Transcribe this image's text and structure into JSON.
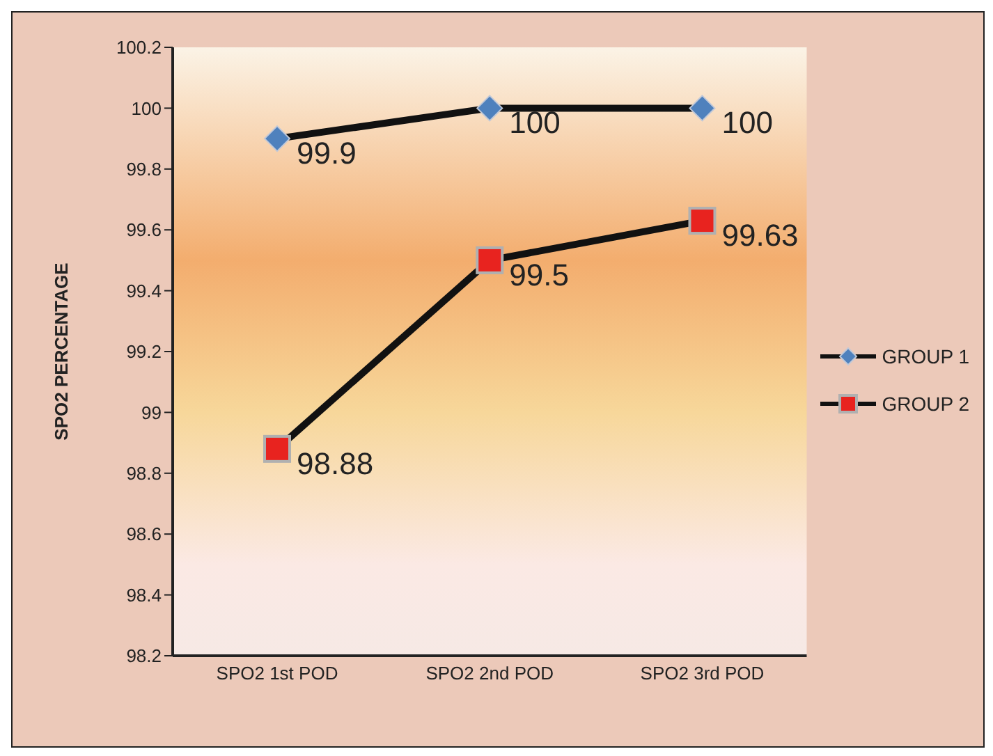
{
  "chart_data": {
    "type": "line",
    "ylabel": "SPO2 PERCENTAGE",
    "categories": [
      "SPO2 1st POD",
      "SPO2 2nd POD",
      "SPO2 3rd POD"
    ],
    "series": [
      {
        "name": "GROUP 1",
        "color": "#4f81bd",
        "marker": "diamond",
        "values": [
          99.9,
          100,
          100
        ]
      },
      {
        "name": "GROUP 2",
        "color": "#e8231f",
        "marker": "square",
        "values": [
          98.88,
          99.5,
          99.63
        ]
      }
    ],
    "ylim": [
      98.2,
      100.2
    ],
    "yticks": [
      98.2,
      98.4,
      98.6,
      98.8,
      99,
      99.2,
      99.4,
      99.6,
      99.8,
      100,
      100.2
    ],
    "grid": false,
    "legend": "right",
    "data_labels": true
  }
}
